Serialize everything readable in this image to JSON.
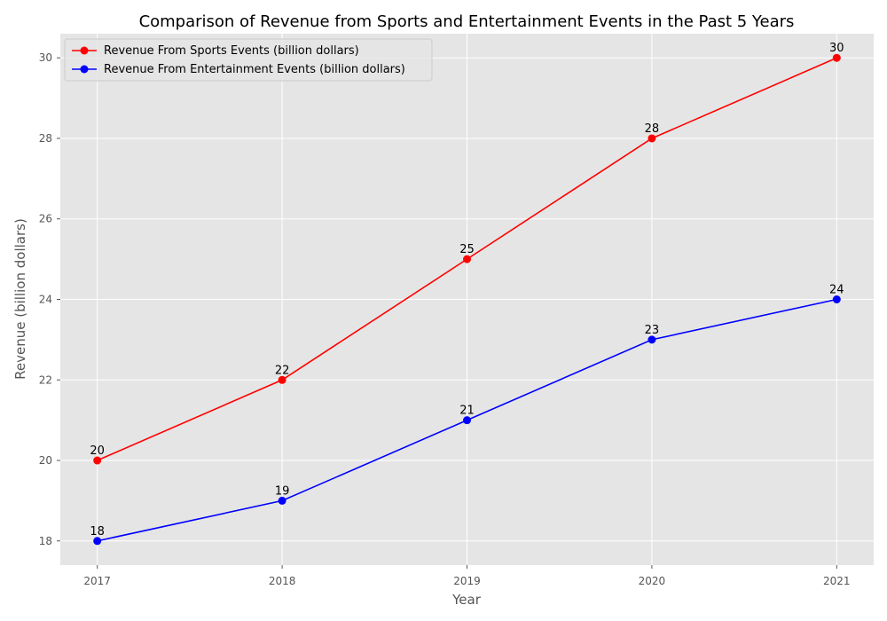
{
  "chart_data": {
    "type": "line",
    "title": "Comparison of Revenue from Sports and Entertainment Events in the Past 5 Years",
    "xlabel": "Year",
    "ylabel": "Revenue (billion dollars)",
    "x": [
      2017,
      2018,
      2019,
      2020,
      2021
    ],
    "x_tick_labels": [
      "2017",
      "2018",
      "2019",
      "2020",
      "2021"
    ],
    "y_ticks": [
      18,
      20,
      22,
      24,
      26,
      28,
      30
    ],
    "y_tick_labels": [
      "18",
      "20",
      "22",
      "24",
      "26",
      "28",
      "30"
    ],
    "ylim": [
      17.4,
      30.6
    ],
    "xlim": [
      2016.8,
      2021.2
    ],
    "grid": true,
    "legend_position": "top-left",
    "series": [
      {
        "name": "Revenue From Sports Events (billion dollars)",
        "color": "#ff0000",
        "marker": "circle",
        "values": [
          20,
          22,
          25,
          28,
          30
        ],
        "labels": [
          "20",
          "22",
          "25",
          "28",
          "30"
        ]
      },
      {
        "name": "Revenue From Entertainment Events (billion dollars)",
        "color": "#0000ff",
        "marker": "circle",
        "values": [
          18,
          19,
          21,
          23,
          24
        ],
        "labels": [
          "18",
          "19",
          "21",
          "23",
          "24"
        ]
      }
    ],
    "plot_background": "#e5e5e5",
    "grid_color": "#ffffff"
  }
}
